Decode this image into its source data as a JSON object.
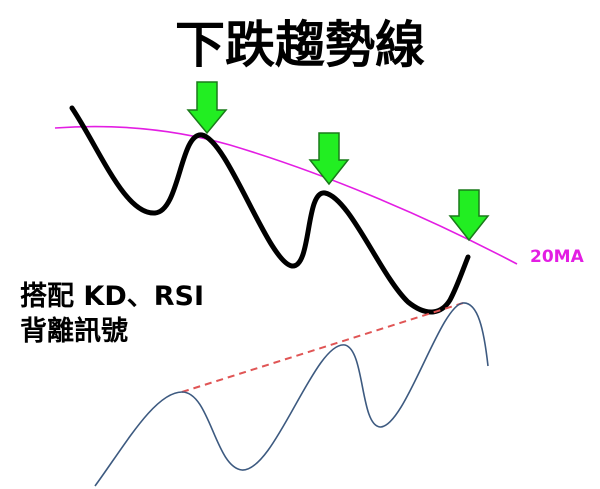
{
  "title": "下跌趨勢線",
  "ma_label": "20MA",
  "note": {
    "line1": "搭配 KD、RSI",
    "line2": "背離訊號"
  },
  "colors": {
    "price": "#000000",
    "ma": "#e31ee3",
    "arrow_fill": "#22ee22",
    "arrow_stroke": "#1a7a1a",
    "oscillator": "#3d5a80",
    "divergence": "#e05555"
  },
  "icons": [
    "down-arrow-icon",
    "down-arrow-icon",
    "down-arrow-icon"
  ]
}
